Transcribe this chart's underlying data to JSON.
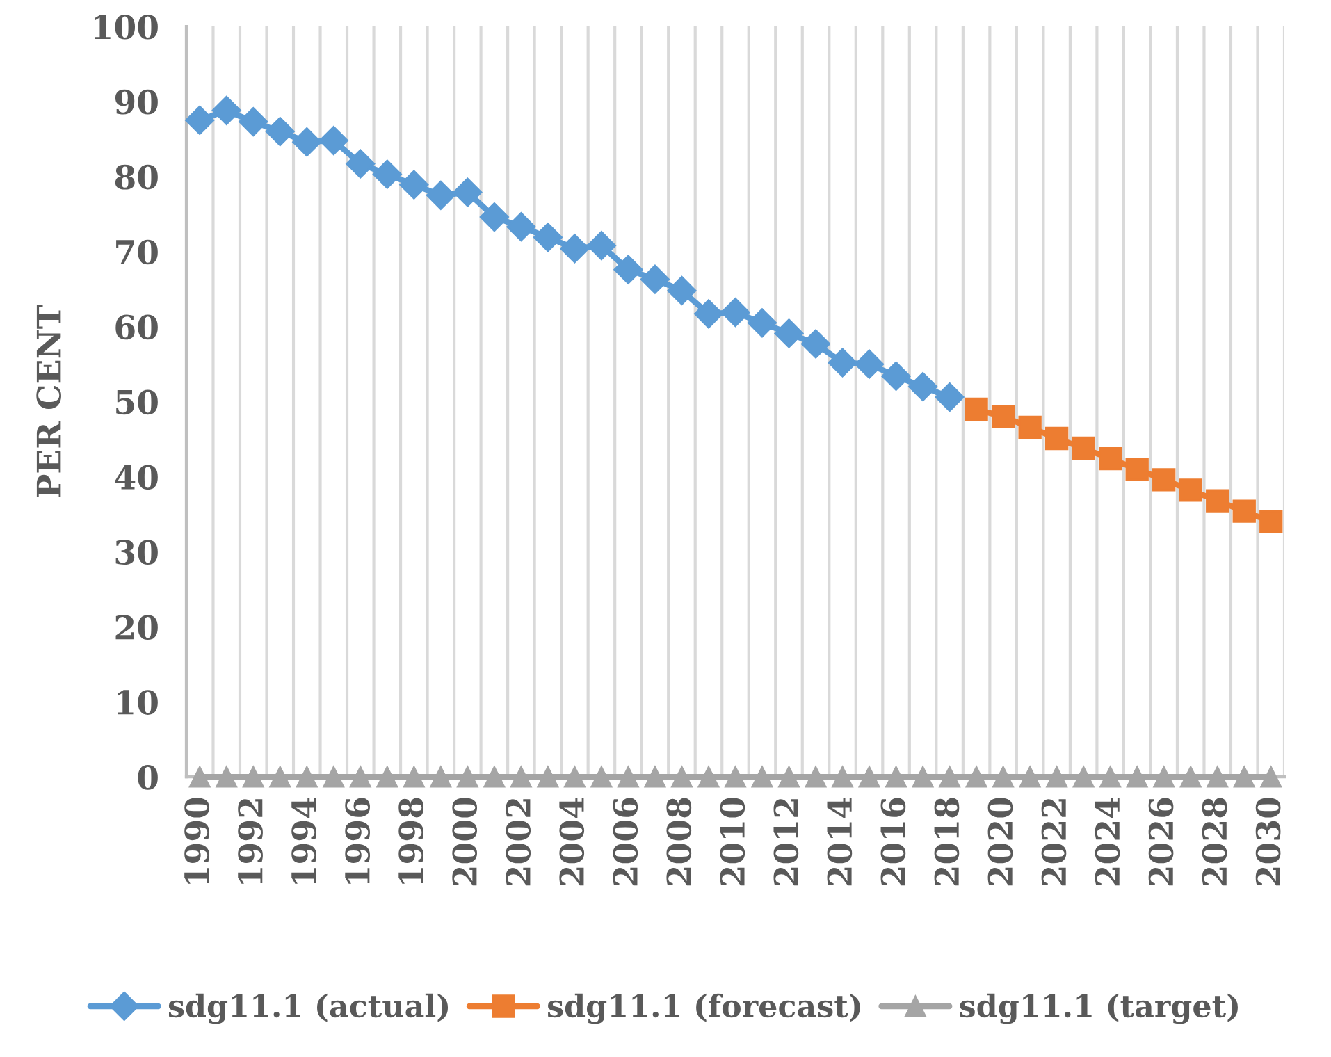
{
  "chart_data": {
    "type": "line",
    "ylabel": "PER CENT",
    "ylim": [
      0,
      100
    ],
    "yticks": [
      0,
      10,
      20,
      30,
      40,
      50,
      60,
      70,
      80,
      90,
      100
    ],
    "grid": "x",
    "legend": "bottom",
    "categories": [
      "1990",
      null,
      "1992",
      null,
      "1994",
      null,
      "1996",
      null,
      "1998",
      null,
      "2000",
      null,
      "2002",
      null,
      "2004",
      null,
      "2006",
      null,
      "2008",
      null,
      "2010",
      null,
      "2012",
      null,
      "2014",
      null,
      "2016",
      null,
      "2018",
      null,
      "2020",
      null,
      "2022",
      null,
      "2024",
      null,
      "2026",
      null,
      "2028",
      null,
      "2030"
    ],
    "series": [
      {
        "name": "sdg11.1 (actual)",
        "color": "#5b9bd5",
        "marker": "diamond",
        "values": [
          87.5,
          88.8,
          87.3,
          86.0,
          84.6,
          84.8,
          81.7,
          80.3,
          78.9,
          77.5,
          77.9,
          74.6,
          73.3,
          71.9,
          70.4,
          70.8,
          67.6,
          66.3,
          64.8,
          61.7,
          61.9,
          60.5,
          59.1,
          57.7,
          55.2,
          55.0,
          53.4,
          52.0,
          50.6,
          null,
          null,
          null,
          null,
          null,
          null,
          null,
          null,
          null,
          null,
          null,
          null
        ]
      },
      {
        "name": "sdg11.1 (forecast)",
        "color": "#ed7d31",
        "marker": "square",
        "values": [
          null,
          null,
          null,
          null,
          null,
          null,
          null,
          null,
          null,
          null,
          null,
          null,
          null,
          null,
          null,
          null,
          null,
          null,
          null,
          null,
          null,
          null,
          null,
          null,
          null,
          null,
          null,
          null,
          null,
          49.0,
          48.0,
          46.6,
          45.1,
          43.8,
          42.4,
          41.0,
          39.6,
          38.2,
          36.8,
          35.4,
          34.0
        ]
      },
      {
        "name": "sdg11.1 (target)",
        "color": "#a5a5a5",
        "marker": "triangle",
        "values": [
          0,
          0,
          0,
          0,
          0,
          0,
          0,
          0,
          0,
          0,
          0,
          0,
          0,
          0,
          0,
          0,
          0,
          0,
          0,
          0,
          0,
          0,
          0,
          0,
          0,
          0,
          0,
          0,
          0,
          0,
          0,
          0,
          0,
          0,
          0,
          0,
          0,
          0,
          0,
          0,
          0
        ]
      }
    ]
  }
}
